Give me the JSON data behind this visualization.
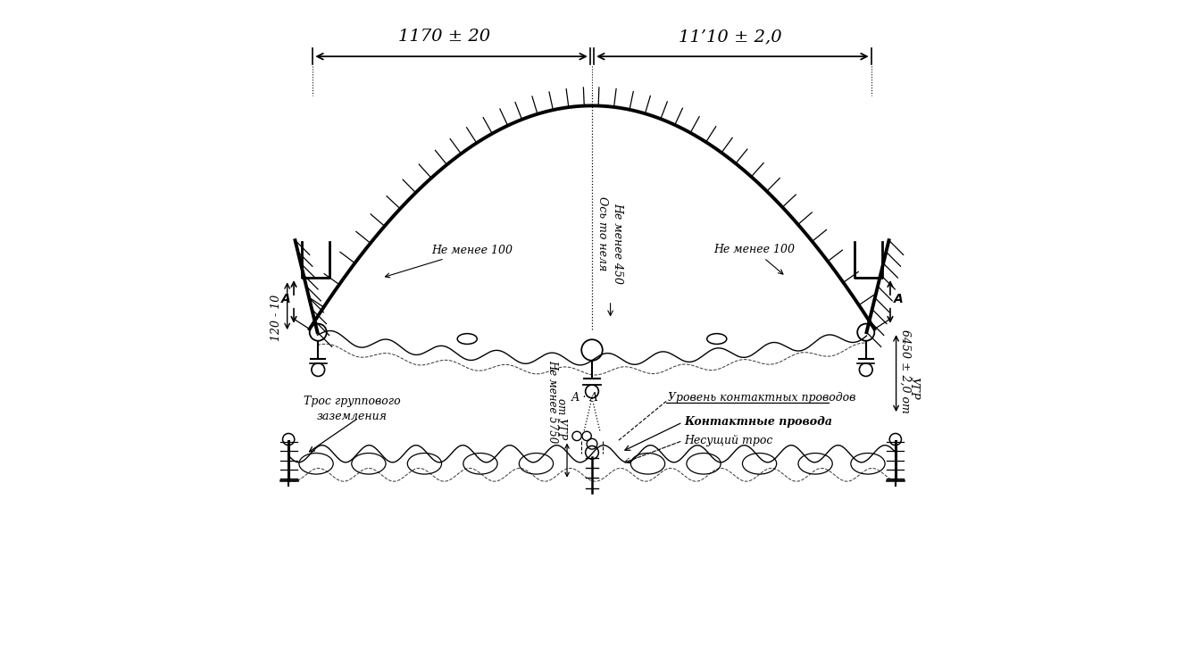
{
  "bg_color": "#ffffff",
  "line_color": "#000000",
  "fig_width": 13.26,
  "fig_height": 7.37,
  "dpi": 100,
  "dim_line1_label": "1170 ± 20",
  "dim_line2_label": "11’10 ± 2,0",
  "label_ne_menee_100_left": "Не менее 100",
  "label_ne_menee_100_right": "Не менее 100",
  "label_ne_menee_450": "Не менее 450",
  "label_os_to_nelya": "Ось то неля",
  "label_120_10": "120 - 10",
  "label_6450": "6450 ± 2,0 от",
  "label_ugr": "УГР",
  "label_tres_gruppa": "Трос группового\nзаземления",
  "label_ne_menee_5750": "Не менее 5750",
  "label_ot_ugr": "от УГР",
  "label_uroven": "Уровень контактных проводов",
  "label_kontaktnye": "Контактные провода",
  "label_nesushchiy": "Несущий трос",
  "label_AA": "А · А"
}
